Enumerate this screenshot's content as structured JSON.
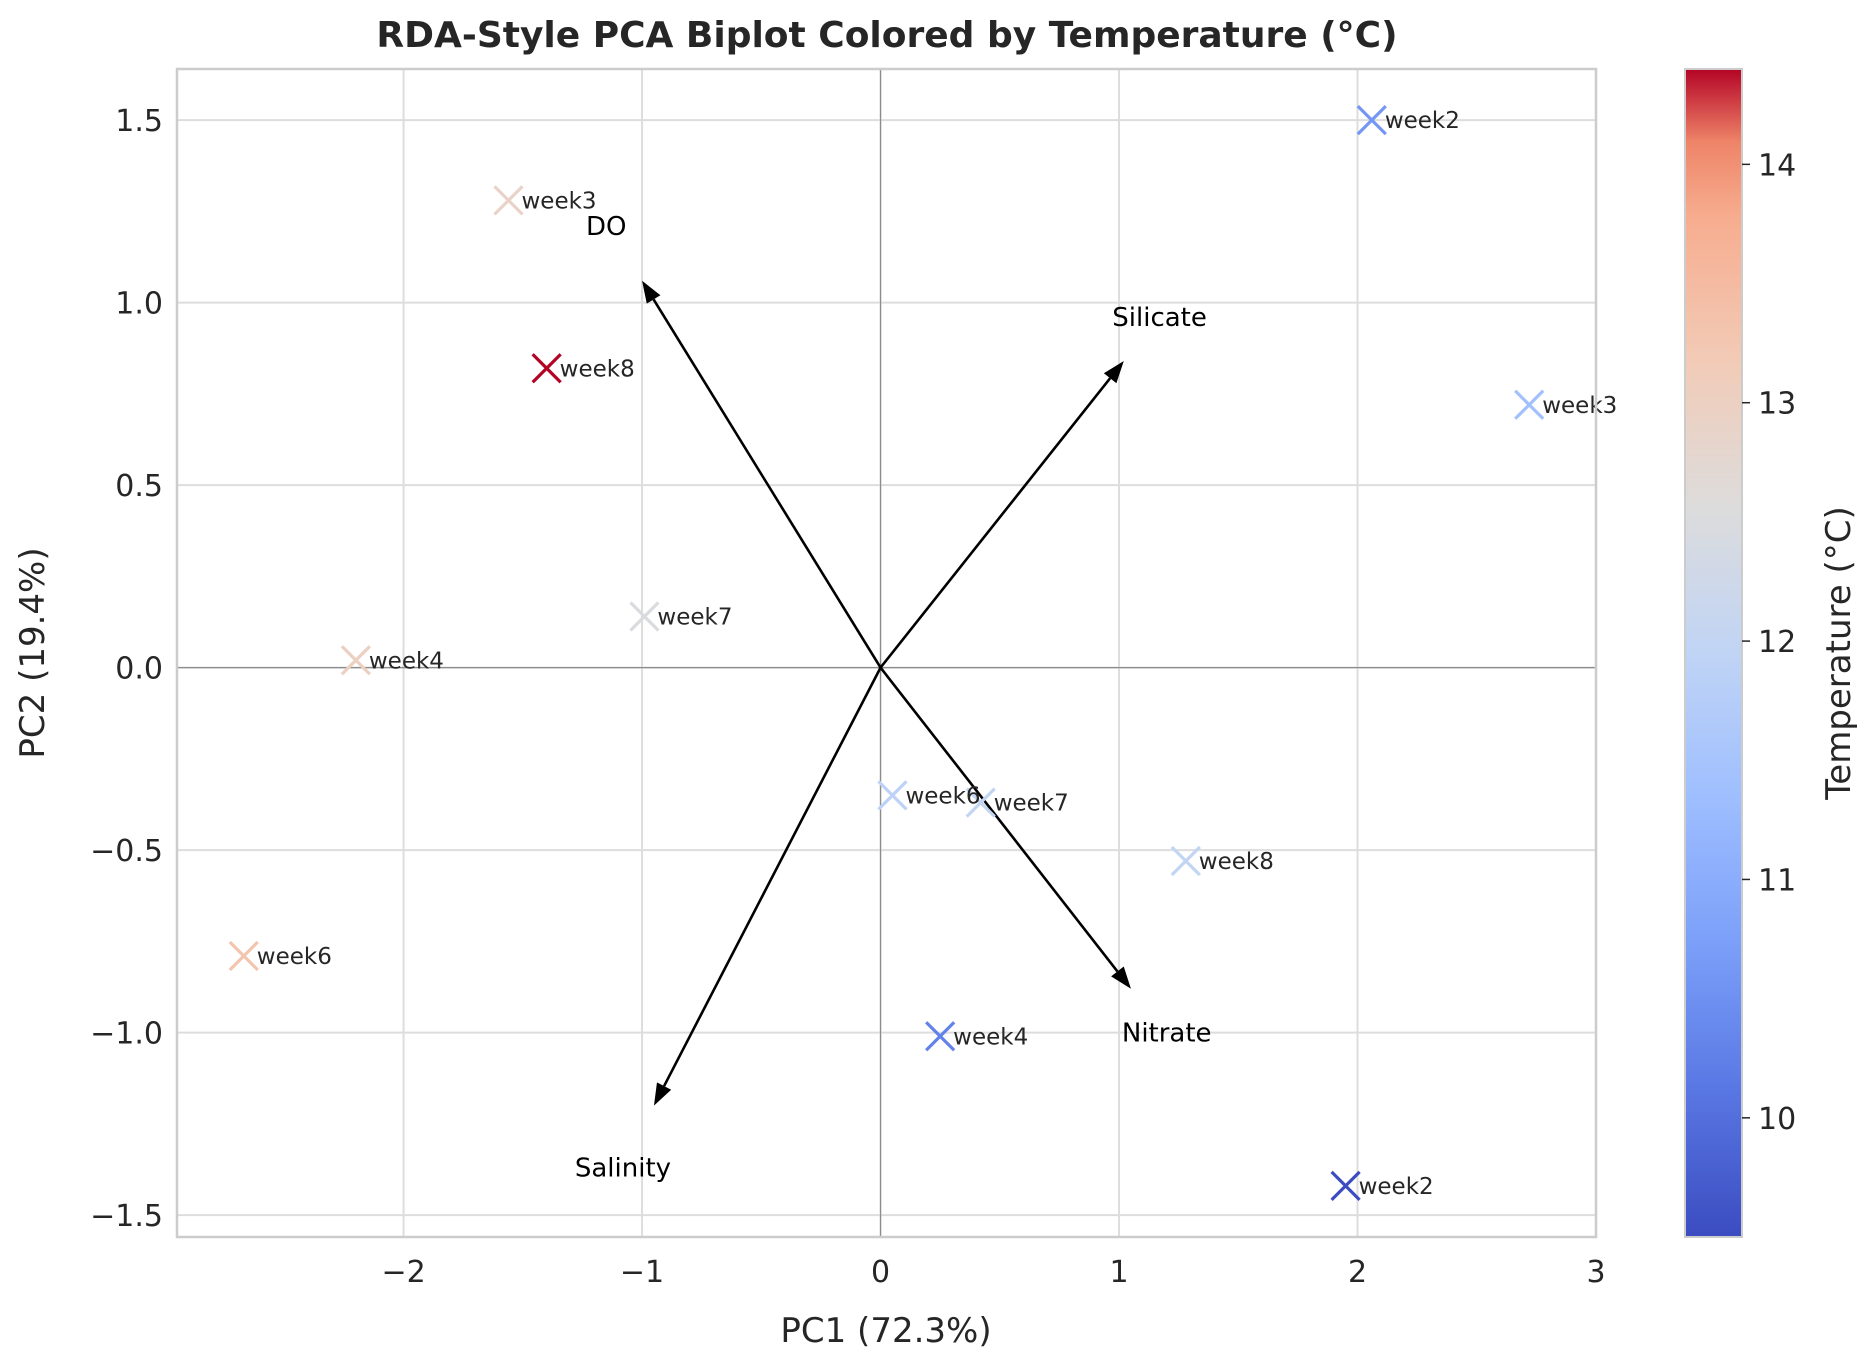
{
  "chart_data": {
    "type": "scatter",
    "title": "RDA-Style PCA Biplot Colored by Temperature (°C)",
    "xlabel": "PC1 (72.3%)",
    "ylabel": "PC2 (19.4%)",
    "xlim": [
      -2.95,
      3.0
    ],
    "ylim": [
      -1.56,
      1.64
    ],
    "xticks": [
      -2,
      -1,
      0,
      1,
      2,
      3
    ],
    "xtick_labels": [
      "−2",
      "−1",
      "0",
      "1",
      "2",
      "3"
    ],
    "yticks": [
      -1.5,
      -1.0,
      -0.5,
      0.0,
      0.5,
      1.0,
      1.5
    ],
    "ytick_labels": [
      "−1.5",
      "−1.0",
      "−0.5",
      "0.0",
      "0.5",
      "1.0",
      "1.5"
    ],
    "grid": true,
    "marker": "x",
    "colormap": "coolwarm",
    "colorbar": {
      "label": "Temperature (°C)",
      "range": [
        9.5,
        14.4
      ],
      "ticks": [
        10,
        11,
        12,
        13,
        14
      ],
      "tick_labels": [
        "10",
        "11",
        "12",
        "13",
        "14"
      ]
    },
    "points": [
      {
        "label": "week2",
        "x": 2.06,
        "y": 1.5,
        "temperature": 10.6
      },
      {
        "label": "week3",
        "x": -1.56,
        "y": 1.28,
        "temperature": 12.9
      },
      {
        "label": "week8",
        "x": -1.4,
        "y": 0.82,
        "temperature": 14.4
      },
      {
        "label": "week3",
        "x": 2.72,
        "y": 0.72,
        "temperature": 11.4
      },
      {
        "label": "week7",
        "x": -0.99,
        "y": 0.14,
        "temperature": 12.5
      },
      {
        "label": "week4",
        "x": -2.2,
        "y": 0.02,
        "temperature": 13.0
      },
      {
        "label": "week6",
        "x": 0.05,
        "y": -0.35,
        "temperature": 11.9
      },
      {
        "label": "week7",
        "x": 0.42,
        "y": -0.37,
        "temperature": 12.0
      },
      {
        "label": "week8",
        "x": 1.28,
        "y": -0.53,
        "temperature": 12.0
      },
      {
        "label": "week6",
        "x": -2.67,
        "y": -0.79,
        "temperature": 13.3
      },
      {
        "label": "week4",
        "x": 0.25,
        "y": -1.01,
        "temperature": 10.3
      },
      {
        "label": "week2",
        "x": 1.95,
        "y": -1.42,
        "temperature": 9.5
      }
    ],
    "loadings": [
      {
        "name": "DO",
        "x": -1.0,
        "y": 1.06,
        "label_x": -1.15,
        "label_y": 1.21
      },
      {
        "name": "Silicate",
        "x": 1.02,
        "y": 0.84,
        "label_x": 1.17,
        "label_y": 0.96
      },
      {
        "name": "Nitrate",
        "x": 1.05,
        "y": -0.88,
        "label_x": 1.2,
        "label_y": -1.0
      },
      {
        "name": "Salinity",
        "x": -0.95,
        "y": -1.2,
        "label_x": -1.08,
        "label_y": -1.37
      }
    ]
  }
}
